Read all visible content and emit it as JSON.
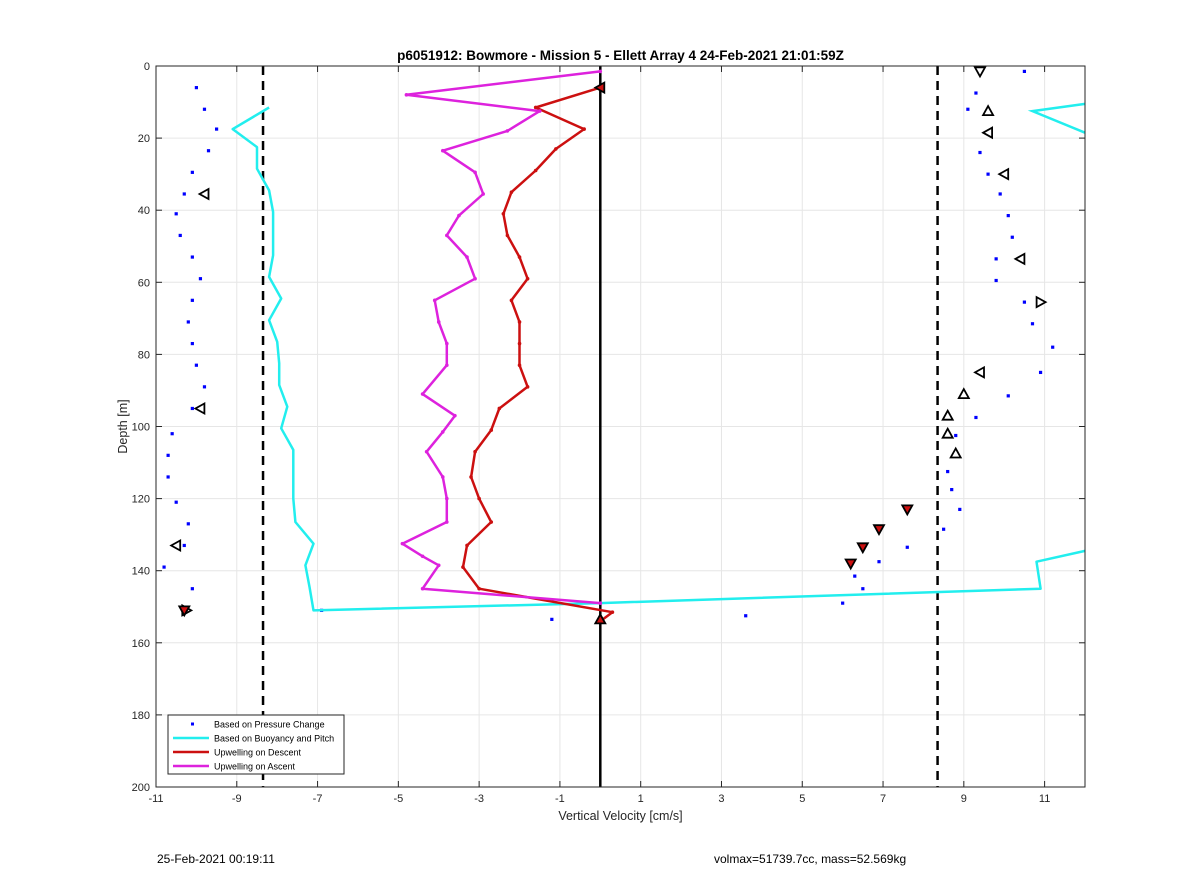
{
  "chart_data": {
    "type": "scatter",
    "title": "p6051912: Bowmore - Mission 5 - Ellett Array 4 24-Feb-2021 21:01:59Z",
    "xlabel": "Vertical Velocity [cm/s]",
    "ylabel": "Depth [m]",
    "xlim": [
      -11,
      12
    ],
    "ylim": [
      0,
      200
    ],
    "y_reversed": true,
    "grid": true,
    "x_ticks": [
      -11,
      -9,
      -7,
      -5,
      -3,
      -1,
      1,
      3,
      5,
      7,
      9,
      11
    ],
    "y_ticks": [
      0,
      20,
      40,
      60,
      80,
      100,
      120,
      140,
      160,
      180,
      200
    ],
    "legend_position": "bottom-left",
    "reference_lines": {
      "zero": 0,
      "dashed": [
        -8.35,
        8.35
      ]
    },
    "series": [
      {
        "name": "Based on Pressure Change",
        "kind": "points",
        "color": "#0000ff",
        "points": [
          [
            -10.0,
            6
          ],
          [
            -9.8,
            12
          ],
          [
            -9.5,
            17.5
          ],
          [
            -9.7,
            23.5
          ],
          [
            -10.1,
            29.5
          ],
          [
            -10.3,
            35.5
          ],
          [
            -10.5,
            41
          ],
          [
            -10.4,
            47
          ],
          [
            -10.1,
            53
          ],
          [
            -9.9,
            59
          ],
          [
            -10.1,
            65
          ],
          [
            -10.2,
            71
          ],
          [
            -10.1,
            77
          ],
          [
            -10.0,
            83
          ],
          [
            -9.8,
            89
          ],
          [
            -10.1,
            95
          ],
          [
            -10.6,
            102
          ],
          [
            -10.7,
            108
          ],
          [
            -10.7,
            114
          ],
          [
            -10.5,
            121
          ],
          [
            -10.2,
            127
          ],
          [
            -10.3,
            133
          ],
          [
            -10.8,
            139
          ],
          [
            -10.1,
            145
          ],
          [
            -10.3,
            151
          ],
          [
            -6.9,
            151
          ],
          [
            -1.2,
            153.5
          ],
          [
            0.0,
            153
          ],
          [
            3.6,
            152.5
          ],
          [
            6.0,
            149
          ],
          [
            6.5,
            145
          ],
          [
            6.3,
            141.5
          ],
          [
            6.9,
            137.5
          ],
          [
            7.6,
            133.5
          ],
          [
            8.5,
            128.5
          ],
          [
            8.9,
            123
          ],
          [
            8.7,
            117.5
          ],
          [
            8.6,
            112.5
          ],
          [
            8.8,
            107.5
          ],
          [
            8.8,
            102.5
          ],
          [
            9.3,
            97.5
          ],
          [
            10.1,
            91.5
          ],
          [
            10.9,
            85
          ],
          [
            11.2,
            78
          ],
          [
            10.7,
            71.5
          ],
          [
            10.5,
            65.5
          ],
          [
            9.8,
            59.5
          ],
          [
            9.8,
            53.5
          ],
          [
            10.2,
            47.5
          ],
          [
            10.1,
            41.5
          ],
          [
            9.9,
            35.5
          ],
          [
            9.6,
            30
          ],
          [
            9.4,
            24
          ],
          [
            9.1,
            12
          ],
          [
            9.3,
            7.5
          ],
          [
            10.5,
            1.5
          ]
        ]
      },
      {
        "name": "Based on Buoyancy and Pitch",
        "kind": "line",
        "color": "#22eeee",
        "points": [
          [
            -8.2,
            11.5
          ],
          [
            -9.1,
            17.5
          ],
          [
            -8.5,
            22.5
          ],
          [
            -8.5,
            28.5
          ],
          [
            -8.2,
            34.5
          ],
          [
            -8.1,
            40.5
          ],
          [
            -8.1,
            46.5
          ],
          [
            -8.1,
            52.5
          ],
          [
            -8.2,
            58.5
          ],
          [
            -7.9,
            64.5
          ],
          [
            -8.2,
            70.5
          ],
          [
            -8.0,
            76.5
          ],
          [
            -7.95,
            82.5
          ],
          [
            -7.95,
            88.5
          ],
          [
            -7.75,
            94.5
          ],
          [
            -7.9,
            100.5
          ],
          [
            -7.6,
            106.5
          ],
          [
            -7.6,
            112.5
          ],
          [
            -7.6,
            120
          ],
          [
            -7.55,
            126.5
          ],
          [
            -7.1,
            132.5
          ],
          [
            -7.3,
            138.5
          ],
          [
            -7.2,
            144.5
          ],
          [
            -7.1,
            151
          ],
          [
            0.0,
            149
          ],
          [
            10.9,
            145
          ],
          [
            10.8,
            137.5
          ],
          [
            12.0,
            134.5
          ]
        ],
        "extra_segments": [
          [
            [
              12.0,
              10.5
            ],
            [
              10.7,
              12.5
            ],
            [
              12.0,
              18.5
            ]
          ]
        ]
      },
      {
        "name": "Upwelling on Descent",
        "kind": "line",
        "color": "#cc1010",
        "points": [
          [
            0.0,
            6
          ],
          [
            -1.6,
            11.5
          ],
          [
            -0.4,
            17.5
          ],
          [
            -1.1,
            23
          ],
          [
            -1.6,
            29
          ],
          [
            -2.2,
            35
          ],
          [
            -2.4,
            41
          ],
          [
            -2.3,
            47
          ],
          [
            -2.0,
            53
          ],
          [
            -1.8,
            59
          ],
          [
            -2.2,
            65
          ],
          [
            -2.0,
            71
          ],
          [
            -2.0,
            77
          ],
          [
            -2.0,
            83
          ],
          [
            -1.8,
            89
          ],
          [
            -2.5,
            95
          ],
          [
            -2.7,
            101
          ],
          [
            -3.1,
            107
          ],
          [
            -3.2,
            114
          ],
          [
            -3.0,
            120
          ],
          [
            -2.7,
            126.5
          ],
          [
            -3.3,
            133
          ],
          [
            -3.4,
            139
          ],
          [
            -3.0,
            145
          ],
          [
            0.3,
            151.5
          ],
          [
            0.0,
            154
          ]
        ]
      },
      {
        "name": "Upwelling on Ascent",
        "kind": "line",
        "color": "#dd22dd",
        "points": [
          [
            0.0,
            1.5
          ],
          [
            -4.8,
            8
          ],
          [
            -1.5,
            12.5
          ],
          [
            -2.3,
            18
          ],
          [
            -3.9,
            23.5
          ],
          [
            -3.1,
            29.5
          ],
          [
            -2.9,
            35.5
          ],
          [
            -3.5,
            41.5
          ],
          [
            -3.8,
            47
          ],
          [
            -3.3,
            53
          ],
          [
            -3.1,
            59
          ],
          [
            -4.1,
            65
          ],
          [
            -4.0,
            71
          ],
          [
            -3.8,
            77
          ],
          [
            -3.8,
            83
          ],
          [
            -4.4,
            91
          ],
          [
            -3.6,
            97
          ],
          [
            -3.9,
            101.5
          ],
          [
            -4.3,
            107
          ],
          [
            -3.9,
            114
          ],
          [
            -3.8,
            120
          ],
          [
            -3.8,
            126.5
          ],
          [
            -4.9,
            132.5
          ],
          [
            -4.4,
            136
          ],
          [
            -4.0,
            138.5
          ],
          [
            -4.4,
            145
          ],
          [
            0.0,
            149
          ]
        ]
      }
    ],
    "markers": {
      "black_triangles": [
        [
          9.4,
          1.5,
          "down"
        ],
        [
          9.6,
          12.5,
          "up"
        ],
        [
          9.6,
          18.5,
          "left"
        ],
        [
          10.0,
          30,
          "left"
        ],
        [
          10.4,
          53.5,
          "left"
        ],
        [
          10.9,
          65.5,
          "right"
        ],
        [
          9.4,
          85,
          "left"
        ],
        [
          9.0,
          91,
          "up"
        ],
        [
          8.6,
          97,
          "up"
        ],
        [
          8.6,
          102,
          "up"
        ],
        [
          8.8,
          107.5,
          "up"
        ],
        [
          -9.8,
          35.5,
          "left"
        ],
        [
          -9.9,
          95,
          "left"
        ],
        [
          -10.5,
          133,
          "left"
        ],
        [
          -10.25,
          151,
          "right"
        ]
      ],
      "red_triangles": [
        [
          0.0,
          6,
          "left"
        ],
        [
          7.6,
          123,
          "down"
        ],
        [
          6.9,
          128.5,
          "down"
        ],
        [
          6.5,
          133.5,
          "down"
        ],
        [
          6.2,
          138,
          "down"
        ],
        [
          -10.3,
          151,
          "down"
        ],
        [
          0.0,
          153.5,
          "up"
        ]
      ]
    }
  },
  "footer": {
    "timestamp": "25-Feb-2021 00:19:11",
    "info": "volmax=51739.7cc, mass=52.569kg"
  }
}
